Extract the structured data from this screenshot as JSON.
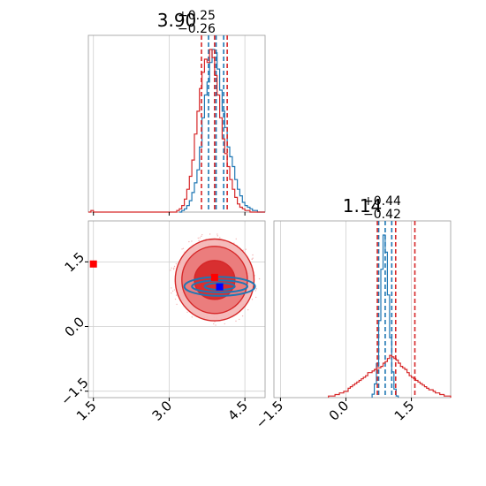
{
  "chart_data": {
    "type": "corner",
    "parameters": [
      {
        "title_value": "3.90",
        "title_upper": "+0.25",
        "title_lower": "−0.26",
        "xlim": [
          1.4,
          4.9
        ],
        "xticks": [
          1.5,
          3.0,
          4.5
        ],
        "xtick_labels": [
          "1.5",
          "3.0",
          "4.5"
        ]
      },
      {
        "title_value": "1.14",
        "title_upper": "+0.44",
        "title_lower": "−0.42",
        "xlim": [
          -1.65,
          2.4
        ],
        "xticks": [
          -1.5,
          0.0,
          1.5
        ],
        "xtick_labels": [
          "−1.5",
          "0.0",
          "1.5"
        ]
      }
    ],
    "joint_ylim": [
      -1.65,
      2.45
    ],
    "joint_yticks": [
      -1.5,
      0.0,
      1.5
    ],
    "joint_ytick_labels": [
      "−1.5",
      "0.0",
      "1.5"
    ],
    "series": [
      {
        "color": "#1f77b4",
        "hist_p1": {
          "bins": [
            3.2,
            3.25,
            3.3,
            3.35,
            3.4,
            3.45,
            3.5,
            3.55,
            3.6,
            3.65,
            3.7,
            3.75,
            3.8,
            3.85,
            3.9,
            3.95,
            4.0,
            4.05,
            4.1,
            4.15,
            4.2,
            4.25,
            4.3,
            4.35,
            4.4,
            4.45,
            4.5,
            4.55,
            4.6,
            4.65,
            4.7,
            4.75,
            4.8,
            4.85,
            4.9
          ],
          "counts": [
            0,
            1,
            2,
            4,
            7,
            12,
            18,
            26,
            40,
            58,
            72,
            80,
            92,
            100,
            98,
            88,
            75,
            62,
            52,
            40,
            34,
            28,
            20,
            14,
            10,
            6,
            4,
            3,
            2,
            1,
            1,
            0,
            0,
            0
          ]
        },
        "hist_p2": {
          "bins": [
            0.6,
            0.65,
            0.7,
            0.75,
            0.8,
            0.85,
            0.9,
            0.95,
            1.0,
            1.05,
            1.1,
            1.15,
            1.2
          ],
          "counts": [
            2,
            8,
            20,
            45,
            75,
            95,
            85,
            60,
            35,
            15,
            5,
            1
          ]
        },
        "quantiles_p1": [
          3.78,
          3.93,
          4.08
        ],
        "quantiles_p2": [
          0.75,
          0.9,
          1.05
        ],
        "joint_point": [
          4.0,
          0.92
        ],
        "contours": [
          {
            "cx": 4.0,
            "cy": 0.93,
            "rx": 0.7,
            "ry": 0.22
          },
          {
            "cx": 4.0,
            "cy": 0.93,
            "rx": 0.55,
            "ry": 0.14
          },
          {
            "cx": 4.0,
            "cy": 0.93,
            "rx": 0.3,
            "ry": 0.08
          }
        ]
      },
      {
        "color": "#d62728",
        "hist_p1": {
          "bins": [
            1.4,
            1.45,
            1.5,
            1.55,
            1.6,
            1.65,
            1.7,
            1.75,
            1.8,
            1.85,
            1.9,
            1.95,
            2.0,
            2.05,
            2.1,
            2.15,
            2.2,
            2.25,
            2.3,
            2.35,
            2.4,
            2.45,
            2.5,
            2.55,
            2.6,
            2.65,
            2.7,
            2.75,
            2.8,
            2.85,
            2.9,
            2.95,
            3.0,
            3.05,
            3.1,
            3.15,
            3.2,
            3.25,
            3.3,
            3.35,
            3.4,
            3.45,
            3.5,
            3.55,
            3.6,
            3.65,
            3.7,
            3.75,
            3.8,
            3.85,
            3.9,
            3.95,
            4.0,
            4.05,
            4.1,
            4.15,
            4.2,
            4.25,
            4.3,
            4.35,
            4.4,
            4.45,
            4.5,
            4.55,
            4.6,
            4.65,
            4.7,
            4.75,
            4.8,
            4.85,
            4.9
          ],
          "counts": [
            0,
            1,
            0,
            0,
            0,
            0,
            0,
            0,
            0,
            0,
            0,
            0,
            0,
            0,
            0,
            0,
            0,
            0,
            0,
            0,
            0,
            0,
            0,
            0,
            0,
            0,
            0,
            0,
            0,
            0,
            0,
            0,
            0,
            0,
            0,
            1,
            2,
            4,
            8,
            14,
            22,
            32,
            48,
            62,
            76,
            86,
            94,
            92,
            100,
            95,
            84,
            72,
            58,
            45,
            36,
            28,
            20,
            14,
            9,
            5,
            3,
            2,
            1,
            1,
            0,
            0,
            0,
            0,
            0,
            0
          ]
        },
        "hist_p2": {
          "bins": [
            -0.4,
            -0.35,
            -0.3,
            -0.25,
            -0.2,
            -0.15,
            -0.1,
            -0.05,
            0.0,
            0.05,
            0.1,
            0.15,
            0.2,
            0.25,
            0.3,
            0.35,
            0.4,
            0.45,
            0.5,
            0.55,
            0.6,
            0.65,
            0.7,
            0.75,
            0.8,
            0.85,
            0.9,
            0.95,
            1.0,
            1.05,
            1.1,
            1.15,
            1.2,
            1.25,
            1.3,
            1.35,
            1.4,
            1.45,
            1.5,
            1.55,
            1.6,
            1.65,
            1.7,
            1.75,
            1.8,
            1.85,
            1.9,
            1.95,
            2.0,
            2.05,
            2.1,
            2.15,
            2.2,
            2.25,
            2.3,
            2.35,
            2.4
          ],
          "counts": [
            1,
            1,
            1,
            2,
            2,
            3,
            3,
            4,
            4,
            6,
            7,
            8,
            9,
            10,
            11,
            12,
            13,
            14,
            16,
            16,
            17,
            18,
            19,
            19,
            20,
            22,
            23,
            25,
            27,
            26,
            25,
            24,
            22,
            20,
            19,
            18,
            16,
            14,
            13,
            12,
            11,
            10,
            9,
            8,
            7,
            6,
            5,
            5,
            4,
            3,
            3,
            2,
            2,
            1,
            1,
            1
          ]
        },
        "quantiles_p1": [
          3.64,
          3.9,
          4.15
        ],
        "quantiles_p2": [
          0.72,
          1.14,
          1.58
        ],
        "joint_point": [
          3.9,
          1.14
        ],
        "joint_point_extra": [
          1.5,
          1.45
        ],
        "contours": [
          {
            "cx": 3.9,
            "cy": 1.08,
            "rx": 0.78,
            "ry": 0.95
          },
          {
            "cx": 3.9,
            "cy": 1.08,
            "rx": 0.65,
            "ry": 0.78
          },
          {
            "cx": 3.9,
            "cy": 1.08,
            "rx": 0.4,
            "ry": 0.45
          }
        ]
      }
    ]
  }
}
